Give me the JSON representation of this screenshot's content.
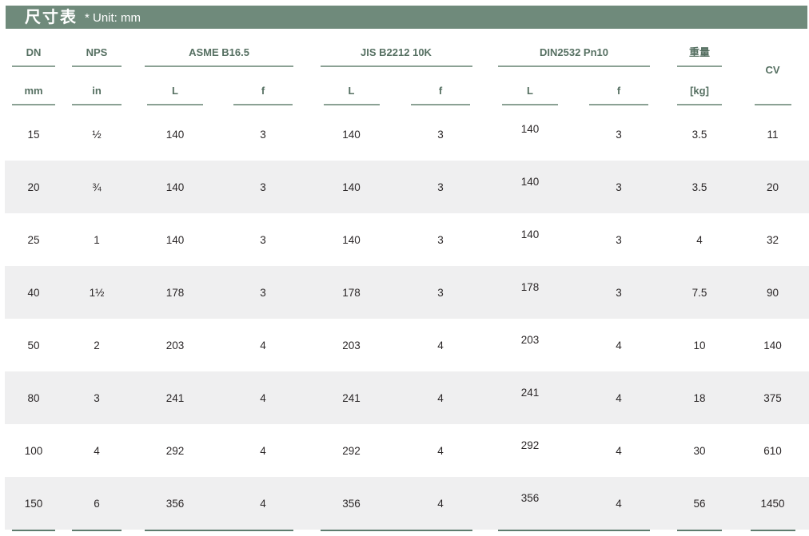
{
  "title_bar": {
    "title_zh": "尺寸表",
    "unit_note": "* Unit: mm"
  },
  "table": {
    "header": {
      "dn": {
        "label": "DN",
        "sub": "mm"
      },
      "nps": {
        "label": "NPS",
        "sub": "in"
      },
      "asme": {
        "label": "ASME B16.5",
        "sub_l": "L",
        "sub_f": "f"
      },
      "jis": {
        "label": "JIS B2212 10K",
        "sub_l": "L",
        "sub_f": "f"
      },
      "din": {
        "label": "DIN2532 Pn10",
        "sub_l": "L",
        "sub_f": "f"
      },
      "weight": {
        "label": "重量",
        "sub": "[kg]"
      },
      "cv": {
        "label": "CV"
      }
    },
    "rows": [
      [
        "15",
        "½",
        "140",
        "3",
        "140",
        "3",
        "140",
        "3",
        "3.5",
        "11"
      ],
      [
        "20",
        "¾",
        "140",
        "3",
        "140",
        "3",
        "140",
        "3",
        "3.5",
        "20"
      ],
      [
        "25",
        "1",
        "140",
        "3",
        "140",
        "3",
        "140",
        "3",
        "4",
        "32"
      ],
      [
        "40",
        "1½",
        "178",
        "3",
        "178",
        "3",
        "178",
        "3",
        "7.5",
        "90"
      ],
      [
        "50",
        "2",
        "203",
        "4",
        "203",
        "4",
        "203",
        "4",
        "10",
        "140"
      ],
      [
        "80",
        "3",
        "241",
        "4",
        "241",
        "4",
        "241",
        "4",
        "18",
        "375"
      ],
      [
        "100",
        "4",
        "292",
        "4",
        "292",
        "4",
        "292",
        "4",
        "30",
        "610"
      ],
      [
        "150",
        "6",
        "356",
        "4",
        "356",
        "4",
        "356",
        "4",
        "56",
        "1450"
      ]
    ]
  },
  "colors": {
    "title_bar_background": "#6f8a7b",
    "title_text": "#ffffff",
    "header_text": "#567062",
    "header_rule": "#8ba194",
    "bottom_rule": "#5e7c6e",
    "row_stripe": "#efeff0",
    "data_text": "#2b2728"
  }
}
